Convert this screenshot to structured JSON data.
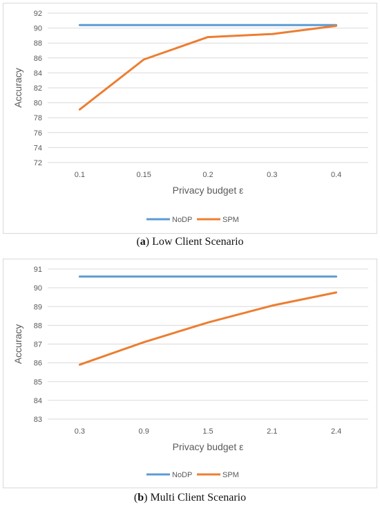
{
  "chart_data": [
    {
      "type": "line",
      "caption_letter": "a",
      "caption_text": "Low Client Scenario",
      "xlabel": "Privacy budget ε",
      "ylabel": "Accuracy",
      "categories": [
        "0.1",
        "0.15",
        "0.2",
        "0.3",
        "0.4"
      ],
      "ylim": [
        72,
        92
      ],
      "yticks": [
        72,
        74,
        76,
        78,
        80,
        82,
        84,
        86,
        88,
        90,
        92
      ],
      "grid": true,
      "legend_position": "bottom",
      "series": [
        {
          "name": "NoDP",
          "color": "#5b9bd5",
          "values": [
            90.4,
            90.4,
            90.4,
            90.4,
            90.4
          ]
        },
        {
          "name": "SPM",
          "color": "#ed7d31",
          "values": [
            79.1,
            85.8,
            88.8,
            89.2,
            90.3
          ]
        }
      ]
    },
    {
      "type": "line",
      "caption_letter": "b",
      "caption_text": "Multi Client Scenario",
      "xlabel": "Privacy budget ε",
      "ylabel": "Accuracy",
      "categories": [
        "0.3",
        "0.9",
        "1.5",
        "2.1",
        "2.4"
      ],
      "ylim": [
        83,
        91
      ],
      "yticks": [
        83,
        84,
        85,
        86,
        87,
        88,
        89,
        90,
        91
      ],
      "grid": true,
      "legend_position": "bottom",
      "series": [
        {
          "name": "NoDP",
          "color": "#5b9bd5",
          "values": [
            90.6,
            90.6,
            90.6,
            90.6,
            90.6
          ]
        },
        {
          "name": "SPM",
          "color": "#ed7d31",
          "values": [
            85.9,
            87.1,
            88.15,
            89.05,
            89.75
          ]
        }
      ]
    }
  ]
}
